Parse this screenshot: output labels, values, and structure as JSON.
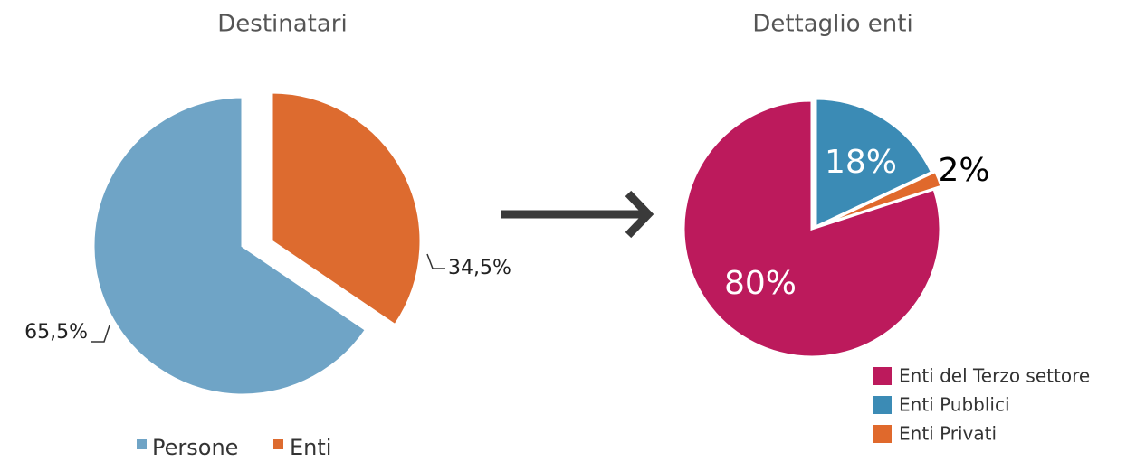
{
  "chart_data": [
    {
      "type": "pie",
      "title": "Destinatari",
      "categories": [
        "Persone",
        "Enti"
      ],
      "values": [
        65.5,
        34.5
      ],
      "value_labels": [
        "65,5%",
        "34,5%"
      ],
      "colors": [
        "#6fa4c6",
        "#dd6b2f"
      ]
    },
    {
      "type": "pie",
      "title": "Dettaglio enti",
      "categories": [
        "Enti del Terzo settore",
        "Enti Pubblici",
        "Enti Privati"
      ],
      "values": [
        80,
        18,
        2
      ],
      "value_labels": [
        "80%",
        "18%",
        "2%"
      ],
      "colors": [
        "#bc1a5c",
        "#3b8bb5",
        "#e0692c"
      ]
    }
  ]
}
